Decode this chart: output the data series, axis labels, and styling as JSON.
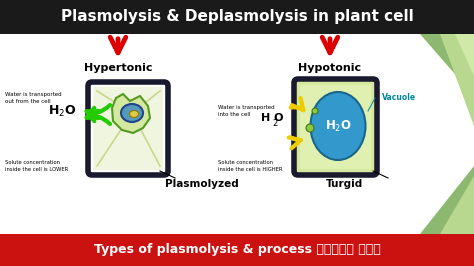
{
  "title": "Plasmolysis & Deplasmolysis in plant cell",
  "title_bg": "#1a1a1a",
  "title_color": "#ffffff",
  "main_bg": "#f5f5f5",
  "footer_text": "Types of plasmolysis & process हिंदी में",
  "footer_bg": "#cc1111",
  "footer_color": "#ffffff",
  "label_left": "Hypertonic",
  "label_right": "Hypotonic",
  "sublabel_left": "Plasmolyzed",
  "sublabel_right": "Turgid",
  "water_out": "Water is transported\nout from the cell",
  "water_in": "Water is transported\ninto the cell",
  "conc_lower": "Solute concentration\ninside the cell is LOWER",
  "conc_higher": "Solute concentration\ninside the cell is HIGHER",
  "vacuole_label": "Vacuole",
  "ho2_text": "H O",
  "h2o_sub": "2",
  "red_arrow": "#dd0000",
  "green_arrow": "#22cc00",
  "yellow_arrow": "#eecc00",
  "cell_wall_dark": "#1a1a2e",
  "cell_green_fill": "#d4e8a0",
  "vacuole_blue": "#3399cc",
  "nucleus_yellow": "#ddcc44",
  "nucleus_blue": "#5599bb",
  "right_panel_bg1": "#c8d8b0",
  "right_panel_bg2": "#e0eecc"
}
